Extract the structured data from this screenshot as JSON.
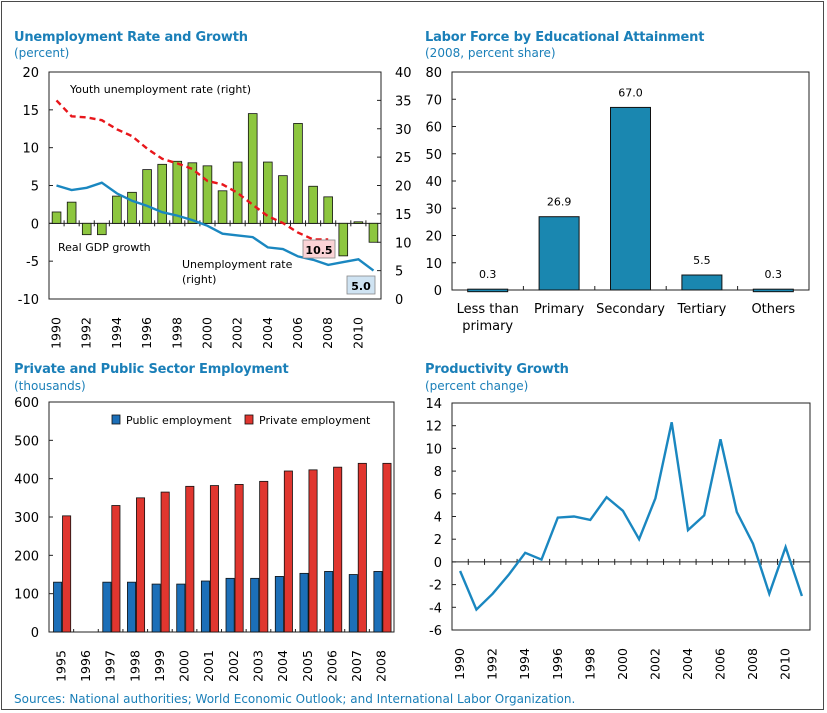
{
  "source": "Sources: National authorities; World Economic Outlook; and International Labor Organization.",
  "panels": {
    "unemployment": {
      "title": "Unemployment Rate and Growth",
      "subtitle": "(percent)"
    },
    "education": {
      "title": "Labor Force by Educational Attainment",
      "subtitle": "(2008, percent share)"
    },
    "employment": {
      "title": "Private and Public Sector Employment",
      "subtitle": "(thousands)"
    },
    "productivity": {
      "title": "Productivity Growth",
      "subtitle": "(percent change)"
    }
  },
  "chart_data": [
    {
      "id": "unemployment",
      "type": "bar",
      "x": [
        1990,
        1991,
        1992,
        1993,
        1994,
        1995,
        1996,
        1997,
        1998,
        1999,
        2000,
        2001,
        2002,
        2003,
        2004,
        2005,
        2006,
        2007,
        2008,
        2009,
        2010,
        2011
      ],
      "xticks": [
        1990,
        1992,
        1994,
        1996,
        1998,
        2000,
        2002,
        2004,
        2006,
        2008,
        2010
      ],
      "ylim": [
        -10,
        20
      ],
      "yticks": [
        -10,
        -5,
        0,
        5,
        10,
        15,
        20
      ],
      "y2lim": [
        0,
        40
      ],
      "y2ticks": [
        0,
        5,
        10,
        15,
        20,
        25,
        30,
        35,
        40
      ],
      "series": [
        {
          "name": "Real GDP growth",
          "axis": "left",
          "kind": "bar",
          "color": "#8dc63f",
          "values": [
            1.5,
            2.8,
            -1.5,
            -1.5,
            3.6,
            4.1,
            7.1,
            7.8,
            8.2,
            8.0,
            7.6,
            4.3,
            8.1,
            14.5,
            8.1,
            6.3,
            13.2,
            4.9,
            3.5,
            -4.3,
            0.2,
            -2.5
          ]
        },
        {
          "name": "Youth unemployment rate (right)",
          "axis": "right",
          "kind": "line",
          "color": "#e8161b",
          "dash": true,
          "values": [
            35,
            32.2,
            32,
            31.5,
            29.9,
            28.7,
            26.5,
            24.7,
            23.9,
            22.9,
            20.8,
            20.2,
            18.7,
            16.6,
            14.6,
            13.4,
            11.7,
            10.5,
            10.5,
            null,
            null,
            null
          ]
        },
        {
          "name": "Unemployment rate (right)",
          "axis": "right",
          "kind": "line",
          "color": "#1a87c0",
          "values": [
            20,
            19.2,
            19.6,
            20.5,
            18.6,
            17.3,
            16.4,
            15.3,
            14.7,
            13.9,
            12.9,
            11.5,
            11.2,
            10.9,
            9.1,
            8.8,
            7.5,
            6.9,
            6.0,
            6.5,
            7.0,
            5.0
          ]
        }
      ],
      "annotations": [
        {
          "text": "Youth unemployment  rate (right)"
        },
        {
          "text": "Real GDP  growth"
        },
        {
          "text": "Unemployment rate"
        },
        {
          "text": "(right)"
        }
      ],
      "value_boxes": [
        {
          "text": "10.5",
          "fill": "#fbd3d6"
        },
        {
          "text": "5.0",
          "fill": "#cfe3f2"
        }
      ]
    },
    {
      "id": "education",
      "type": "bar",
      "categories": [
        [
          "Less than",
          "primary"
        ],
        [
          "Primary"
        ],
        [
          "Secondary"
        ],
        [
          "Tertiary"
        ],
        [
          "Others"
        ]
      ],
      "values": [
        0.3,
        26.9,
        67.0,
        5.5,
        0.3
      ],
      "labels": [
        "0.3",
        "26.9",
        "67.0",
        "5.5",
        "0.3"
      ],
      "ylim": [
        0,
        80
      ],
      "yticks": [
        0,
        10,
        20,
        30,
        40,
        50,
        60,
        70,
        80
      ],
      "color": "#1a87b0"
    },
    {
      "id": "employment",
      "type": "bar",
      "categories": [
        "1995",
        "1996",
        "1997",
        "1998",
        "1999",
        "2000",
        "2001",
        "2002",
        "2003",
        "2004",
        "2005",
        "2006",
        "2007",
        "2008"
      ],
      "ylim": [
        0,
        600
      ],
      "yticks": [
        0,
        100,
        200,
        300,
        400,
        500,
        600
      ],
      "series": [
        {
          "name": "Public employment",
          "color": "#1c6fb8",
          "values": [
            130,
            null,
            130,
            130,
            125,
            125,
            133,
            140,
            140,
            145,
            153,
            158,
            150,
            158
          ]
        },
        {
          "name": "Private employment",
          "color": "#e0362f",
          "values": [
            303,
            null,
            330,
            350,
            365,
            380,
            382,
            385,
            393,
            420,
            423,
            430,
            440,
            440
          ]
        }
      ],
      "legend": "top"
    },
    {
      "id": "productivity",
      "type": "line",
      "x": [
        1990,
        1991,
        1992,
        1993,
        1994,
        1995,
        1996,
        1997,
        1998,
        1999,
        2000,
        2001,
        2002,
        2003,
        2004,
        2005,
        2006,
        2007,
        2008,
        2009,
        2010,
        2011
      ],
      "xticks": [
        1990,
        1992,
        1994,
        1996,
        1998,
        2000,
        2002,
        2004,
        2006,
        2008,
        2010
      ],
      "values": [
        -0.8,
        -4.2,
        -2.8,
        -1.1,
        0.8,
        0.2,
        3.9,
        4.0,
        3.7,
        5.7,
        4.5,
        2.0,
        5.6,
        12.3,
        2.8,
        4.1,
        10.8,
        4.4,
        1.6,
        -2.8,
        1.3,
        -3.0
      ],
      "ylim": [
        -6,
        14
      ],
      "yticks": [
        -6,
        -4,
        -2,
        0,
        2,
        4,
        6,
        8,
        10,
        12,
        14
      ],
      "color": "#1a87c0"
    }
  ]
}
